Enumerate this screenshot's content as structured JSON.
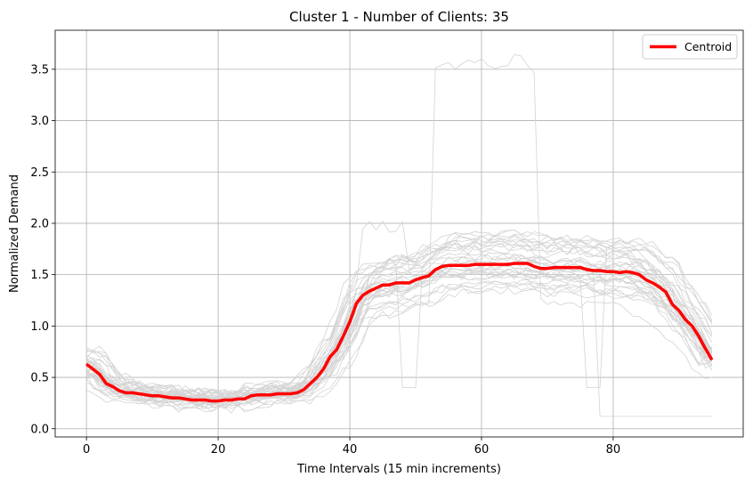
{
  "chart_data": {
    "type": "line",
    "title": "Cluster 1 - Number of Clients: 35",
    "xlabel": "Time Intervals (15 min increments)",
    "ylabel": "Normalized Demand",
    "xlim": [
      -4.75,
      99.75
    ],
    "ylim": [
      -0.08,
      3.88
    ],
    "xticks": [
      0,
      20,
      40,
      60,
      80
    ],
    "yticks": [
      0.0,
      0.5,
      1.0,
      1.5,
      2.0,
      2.5,
      3.0,
      3.5
    ],
    "xtick_labels": [
      "0",
      "20",
      "40",
      "60",
      "80"
    ],
    "ytick_labels": [
      "0.0",
      "0.5",
      "1.0",
      "1.5",
      "2.0",
      "2.5",
      "3.0",
      "3.5"
    ],
    "grid": true,
    "legend_position": "top-right",
    "client_count": 35,
    "client_color": "#d3d3d3",
    "series": [
      {
        "name": "Centroid",
        "color": "#ff0000",
        "x_start": 0,
        "x_step": 1,
        "values": [
          0.63,
          0.58,
          0.53,
          0.44,
          0.41,
          0.37,
          0.35,
          0.35,
          0.34,
          0.33,
          0.32,
          0.32,
          0.31,
          0.3,
          0.3,
          0.29,
          0.28,
          0.28,
          0.28,
          0.27,
          0.27,
          0.28,
          0.28,
          0.29,
          0.29,
          0.32,
          0.33,
          0.33,
          0.33,
          0.34,
          0.34,
          0.34,
          0.35,
          0.38,
          0.44,
          0.5,
          0.58,
          0.7,
          0.77,
          0.9,
          1.04,
          1.22,
          1.3,
          1.34,
          1.37,
          1.4,
          1.4,
          1.42,
          1.42,
          1.42,
          1.45,
          1.47,
          1.49,
          1.55,
          1.58,
          1.59,
          1.59,
          1.59,
          1.59,
          1.6,
          1.6,
          1.6,
          1.6,
          1.6,
          1.6,
          1.61,
          1.61,
          1.61,
          1.58,
          1.56,
          1.56,
          1.57,
          1.57,
          1.57,
          1.57,
          1.57,
          1.55,
          1.54,
          1.54,
          1.53,
          1.53,
          1.52,
          1.53,
          1.52,
          1.5,
          1.45,
          1.42,
          1.38,
          1.33,
          1.21,
          1.15,
          1.06,
          1.0,
          0.9,
          0.78,
          0.67
        ]
      }
    ]
  }
}
